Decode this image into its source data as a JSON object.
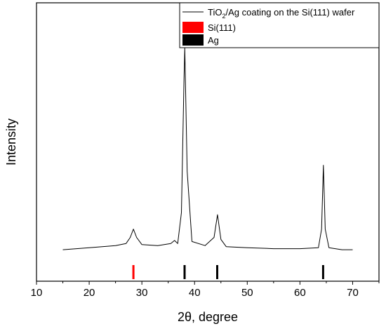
{
  "chart_data": {
    "type": "line",
    "title": "",
    "xlabel": "2θ, degree",
    "ylabel": "Intensity",
    "xlim": [
      10,
      75
    ],
    "xticks": [
      10,
      20,
      30,
      40,
      50,
      60,
      70
    ],
    "x_tick_labels": [
      "10",
      "20",
      "30",
      "40",
      "50",
      "60",
      "70"
    ],
    "yticks_shown": false,
    "grid": false,
    "legend_position": "top-right",
    "series": [
      {
        "name": "TiO2/Ag coating on the Si(111) wafer",
        "color": "#000000",
        "x": [
          15,
          20,
          25,
          27,
          27.8,
          28.4,
          29,
          30,
          33,
          35.5,
          36.2,
          36.8,
          37.5,
          38.0,
          38.15,
          38.6,
          39.5,
          42,
          43.7,
          44.35,
          45,
          46,
          50,
          55,
          60,
          63.5,
          64.1,
          64.45,
          64.8,
          65.5,
          68,
          70
        ],
        "y": [
          0.02,
          0.03,
          0.04,
          0.05,
          0.08,
          0.12,
          0.08,
          0.045,
          0.04,
          0.05,
          0.065,
          0.05,
          0.2,
          0.85,
          1.0,
          0.4,
          0.06,
          0.04,
          0.08,
          0.19,
          0.07,
          0.035,
          0.03,
          0.025,
          0.025,
          0.03,
          0.12,
          0.43,
          0.12,
          0.03,
          0.02,
          0.02
        ]
      }
    ],
    "reference_markers": [
      {
        "name": "Si(111)",
        "color": "#ff0000",
        "positions": [
          28.4
        ]
      },
      {
        "name": "Ag",
        "color": "#000000",
        "positions": [
          38.1,
          44.3,
          64.4
        ]
      }
    ],
    "legend": {
      "series_label_prefix": "TiO",
      "series_label_sub": "2",
      "series_label_suffix": "/Ag coating on the Si(111) wafer",
      "entries": [
        "Si(111)",
        "Ag"
      ]
    }
  }
}
